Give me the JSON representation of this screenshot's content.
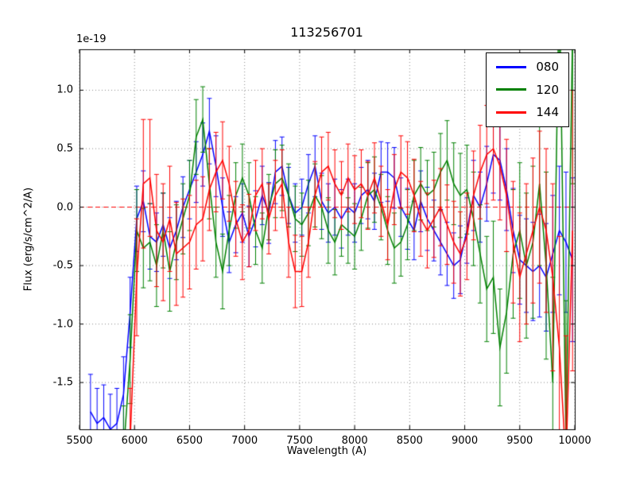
{
  "chart_data": {
    "type": "line",
    "title": "113256701",
    "xlabel": "Wavelength (A)",
    "ylabel": "Flux (erg/s/cm^2/A)",
    "y_offset_label": "1e-19",
    "xlim": [
      5500,
      10000
    ],
    "ylim": [
      -1.9,
      1.35
    ],
    "xticks": [
      5500,
      6000,
      6500,
      7000,
      7500,
      8000,
      8500,
      9000,
      9500,
      10000
    ],
    "yticks": [
      -1.5,
      -1.0,
      -0.5,
      0.0,
      0.5,
      1.0
    ],
    "grid": true,
    "grid_style": "dotted",
    "grid_color": "#888888",
    "zero_line": {
      "y": 0,
      "color": "#ff0000",
      "style": "dashed"
    },
    "legend": {
      "position": "upper right"
    },
    "series": [
      {
        "name": "080",
        "color": "#0000ff",
        "points": [
          [
            5600,
            -1.75,
            0.32
          ],
          [
            5660,
            -1.85,
            0.3
          ],
          [
            5720,
            -1.8,
            0.28
          ],
          [
            5780,
            -1.9,
            0.3
          ],
          [
            5840,
            -1.85,
            0.3
          ],
          [
            5900,
            -1.6,
            0.32
          ],
          [
            5960,
            -0.9,
            0.3
          ],
          [
            6020,
            -0.1,
            0.28
          ],
          [
            6080,
            0.05,
            0.26
          ],
          [
            6140,
            -0.25,
            0.28
          ],
          [
            6200,
            -0.3,
            0.25
          ],
          [
            6260,
            -0.15,
            0.27
          ],
          [
            6320,
            -0.35,
            0.26
          ],
          [
            6380,
            -0.2,
            0.25
          ],
          [
            6440,
            0.0,
            0.26
          ],
          [
            6500,
            0.15,
            0.25
          ],
          [
            6560,
            0.3,
            0.26
          ],
          [
            6620,
            0.45,
            0.27
          ],
          [
            6680,
            0.65,
            0.28
          ],
          [
            6740,
            0.35,
            0.26
          ],
          [
            6800,
            0.0,
            0.25
          ],
          [
            6860,
            -0.3,
            0.26
          ],
          [
            6920,
            -0.15,
            0.24
          ],
          [
            6980,
            -0.05,
            0.25
          ],
          [
            7040,
            -0.25,
            0.26
          ],
          [
            7100,
            -0.1,
            0.24
          ],
          [
            7160,
            0.1,
            0.25
          ],
          [
            7220,
            -0.05,
            0.26
          ],
          [
            7280,
            0.3,
            0.27
          ],
          [
            7340,
            0.35,
            0.25
          ],
          [
            7400,
            0.1,
            0.24
          ],
          [
            7460,
            -0.05,
            0.25
          ],
          [
            7520,
            0.0,
            0.24
          ],
          [
            7580,
            0.2,
            0.25
          ],
          [
            7640,
            0.35,
            0.26
          ],
          [
            7700,
            0.05,
            0.24
          ],
          [
            7760,
            -0.05,
            0.25
          ],
          [
            7820,
            0.0,
            0.24
          ],
          [
            7880,
            -0.1,
            0.25
          ],
          [
            7940,
            0.0,
            0.24
          ],
          [
            8000,
            -0.05,
            0.25
          ],
          [
            8060,
            0.1,
            0.24
          ],
          [
            8120,
            0.15,
            0.25
          ],
          [
            8180,
            0.05,
            0.24
          ],
          [
            8240,
            0.3,
            0.26
          ],
          [
            8300,
            0.3,
            0.25
          ],
          [
            8360,
            0.25,
            0.26
          ],
          [
            8420,
            0.0,
            0.25
          ],
          [
            8480,
            -0.1,
            0.26
          ],
          [
            8540,
            -0.2,
            0.25
          ],
          [
            8600,
            0.05,
            0.26
          ],
          [
            8660,
            -0.1,
            0.27
          ],
          [
            8720,
            -0.2,
            0.26
          ],
          [
            8780,
            -0.3,
            0.28
          ],
          [
            8840,
            -0.4,
            0.27
          ],
          [
            8900,
            -0.5,
            0.28
          ],
          [
            8960,
            -0.45,
            0.29
          ],
          [
            9020,
            -0.2,
            0.28
          ],
          [
            9080,
            0.1,
            0.3
          ],
          [
            9140,
            0.0,
            0.3
          ],
          [
            9200,
            0.2,
            0.32
          ],
          [
            9260,
            0.45,
            0.33
          ],
          [
            9320,
            0.4,
            0.34
          ],
          [
            9380,
            0.15,
            0.35
          ],
          [
            9440,
            -0.2,
            0.36
          ],
          [
            9500,
            -0.45,
            0.38
          ],
          [
            9560,
            -0.5,
            0.4
          ],
          [
            9620,
            -0.55,
            0.42
          ],
          [
            9680,
            -0.5,
            0.44
          ],
          [
            9740,
            -0.6,
            0.46
          ],
          [
            9800,
            -0.4,
            0.5
          ],
          [
            9860,
            -0.2,
            0.55
          ],
          [
            9920,
            -0.3,
            0.6
          ],
          [
            9980,
            -0.45,
            0.7
          ]
        ]
      },
      {
        "name": "120",
        "color": "#008000",
        "points": [
          [
            5900,
            -2.1,
            0.4
          ],
          [
            5960,
            -1.3,
            0.38
          ],
          [
            6020,
            -0.2,
            0.35
          ],
          [
            6080,
            -0.35,
            0.34
          ],
          [
            6140,
            -0.3,
            0.33
          ],
          [
            6200,
            -0.5,
            0.35
          ],
          [
            6260,
            -0.2,
            0.32
          ],
          [
            6320,
            -0.55,
            0.34
          ],
          [
            6380,
            -0.3,
            0.32
          ],
          [
            6440,
            -0.1,
            0.3
          ],
          [
            6500,
            0.1,
            0.3
          ],
          [
            6560,
            0.6,
            0.32
          ],
          [
            6620,
            0.75,
            0.28
          ],
          [
            6680,
            0.2,
            0.3
          ],
          [
            6740,
            -0.3,
            0.3
          ],
          [
            6800,
            -0.55,
            0.32
          ],
          [
            6860,
            -0.2,
            0.3
          ],
          [
            6920,
            0.1,
            0.28
          ],
          [
            6980,
            0.25,
            0.29
          ],
          [
            7040,
            0.1,
            0.28
          ],
          [
            7100,
            -0.2,
            0.29
          ],
          [
            7160,
            -0.35,
            0.3
          ],
          [
            7220,
            0.0,
            0.28
          ],
          [
            7280,
            0.2,
            0.29
          ],
          [
            7340,
            0.25,
            0.28
          ],
          [
            7400,
            0.1,
            0.27
          ],
          [
            7460,
            -0.1,
            0.28
          ],
          [
            7520,
            -0.15,
            0.27
          ],
          [
            7580,
            -0.05,
            0.28
          ],
          [
            7640,
            0.1,
            0.27
          ],
          [
            7700,
            0.0,
            0.27
          ],
          [
            7760,
            -0.2,
            0.28
          ],
          [
            7820,
            -0.3,
            0.28
          ],
          [
            7880,
            -0.15,
            0.27
          ],
          [
            7940,
            -0.2,
            0.28
          ],
          [
            8000,
            -0.25,
            0.28
          ],
          [
            8060,
            -0.1,
            0.27
          ],
          [
            8120,
            0.1,
            0.28
          ],
          [
            8180,
            0.15,
            0.28
          ],
          [
            8240,
            0.0,
            0.28
          ],
          [
            8300,
            -0.2,
            0.29
          ],
          [
            8360,
            -0.35,
            0.3
          ],
          [
            8420,
            -0.3,
            0.29
          ],
          [
            8480,
            -0.15,
            0.3
          ],
          [
            8540,
            0.1,
            0.3
          ],
          [
            8600,
            0.2,
            0.31
          ],
          [
            8660,
            0.1,
            0.3
          ],
          [
            8720,
            0.15,
            0.32
          ],
          [
            8780,
            0.3,
            0.33
          ],
          [
            8840,
            0.4,
            0.34
          ],
          [
            8900,
            0.2,
            0.35
          ],
          [
            8960,
            0.1,
            0.36
          ],
          [
            9020,
            0.15,
            0.38
          ],
          [
            9080,
            -0.1,
            0.4
          ],
          [
            9140,
            -0.4,
            0.42
          ],
          [
            9200,
            -0.7,
            0.45
          ],
          [
            9260,
            -0.6,
            0.48
          ],
          [
            9320,
            -1.2,
            0.5
          ],
          [
            9380,
            -0.9,
            0.52
          ],
          [
            9440,
            -0.4,
            0.55
          ],
          [
            9500,
            -0.2,
            0.58
          ],
          [
            9560,
            -0.5,
            0.62
          ],
          [
            9620,
            -0.3,
            0.65
          ],
          [
            9680,
            0.2,
            0.7
          ],
          [
            9740,
            -0.5,
            0.8
          ],
          [
            9800,
            -1.5,
            0.9
          ],
          [
            9860,
            2.0,
            1.1
          ],
          [
            9920,
            -2.0,
            1.2
          ],
          [
            9980,
            1.5,
            1.3
          ]
        ]
      },
      {
        "name": "144",
        "color": "#ff0000",
        "points": [
          [
            5960,
            -2.0,
            0.45
          ],
          [
            6020,
            -0.6,
            0.5
          ],
          [
            6080,
            0.2,
            0.55
          ],
          [
            6140,
            0.25,
            0.5
          ],
          [
            6200,
            -0.2,
            0.48
          ],
          [
            6260,
            -0.3,
            0.5
          ],
          [
            6320,
            -0.1,
            0.45
          ],
          [
            6380,
            -0.4,
            0.44
          ],
          [
            6440,
            -0.35,
            0.42
          ],
          [
            6500,
            -0.3,
            0.4
          ],
          [
            6560,
            -0.15,
            0.38
          ],
          [
            6620,
            -0.1,
            0.36
          ],
          [
            6680,
            0.15,
            0.35
          ],
          [
            6740,
            0.3,
            0.34
          ],
          [
            6800,
            0.4,
            0.33
          ],
          [
            6860,
            0.2,
            0.32
          ],
          [
            6920,
            -0.1,
            0.32
          ],
          [
            6980,
            -0.3,
            0.32
          ],
          [
            7040,
            -0.2,
            0.31
          ],
          [
            7100,
            0.1,
            0.3
          ],
          [
            7160,
            0.2,
            0.3
          ],
          [
            7220,
            -0.1,
            0.3
          ],
          [
            7280,
            0.1,
            0.3
          ],
          [
            7340,
            0.2,
            0.29
          ],
          [
            7400,
            -0.3,
            0.3
          ],
          [
            7460,
            -0.55,
            0.31
          ],
          [
            7520,
            -0.55,
            0.3
          ],
          [
            7580,
            -0.3,
            0.3
          ],
          [
            7640,
            0.1,
            0.29
          ],
          [
            7700,
            0.3,
            0.3
          ],
          [
            7760,
            0.35,
            0.29
          ],
          [
            7820,
            0.2,
            0.29
          ],
          [
            7880,
            0.1,
            0.29
          ],
          [
            7940,
            0.25,
            0.29
          ],
          [
            8000,
            0.15,
            0.29
          ],
          [
            8060,
            0.2,
            0.29
          ],
          [
            8120,
            0.1,
            0.29
          ],
          [
            8180,
            0.25,
            0.3
          ],
          [
            8240,
            0.05,
            0.3
          ],
          [
            8300,
            -0.15,
            0.3
          ],
          [
            8360,
            0.15,
            0.3
          ],
          [
            8420,
            0.3,
            0.31
          ],
          [
            8480,
            0.25,
            0.31
          ],
          [
            8540,
            0.1,
            0.31
          ],
          [
            8600,
            -0.1,
            0.32
          ],
          [
            8660,
            -0.2,
            0.32
          ],
          [
            8720,
            -0.1,
            0.33
          ],
          [
            8780,
            0.0,
            0.33
          ],
          [
            8840,
            -0.15,
            0.34
          ],
          [
            8900,
            -0.3,
            0.35
          ],
          [
            8960,
            -0.4,
            0.36
          ],
          [
            9020,
            -0.25,
            0.37
          ],
          [
            9080,
            0.1,
            0.38
          ],
          [
            9140,
            0.3,
            0.4
          ],
          [
            9200,
            0.45,
            0.42
          ],
          [
            9260,
            0.5,
            0.44
          ],
          [
            9320,
            0.35,
            0.46
          ],
          [
            9380,
            0.1,
            0.48
          ],
          [
            9440,
            -0.3,
            0.52
          ],
          [
            9500,
            -0.6,
            0.55
          ],
          [
            9560,
            -0.4,
            0.6
          ],
          [
            9620,
            -0.2,
            0.62
          ],
          [
            9680,
            0.0,
            0.65
          ],
          [
            9740,
            -0.2,
            0.7
          ],
          [
            9800,
            -0.6,
            0.8
          ],
          [
            9860,
            -1.2,
            0.95
          ],
          [
            9920,
            -2.2,
            1.1
          ],
          [
            9980,
            -0.2,
            1.2
          ]
        ]
      }
    ]
  }
}
